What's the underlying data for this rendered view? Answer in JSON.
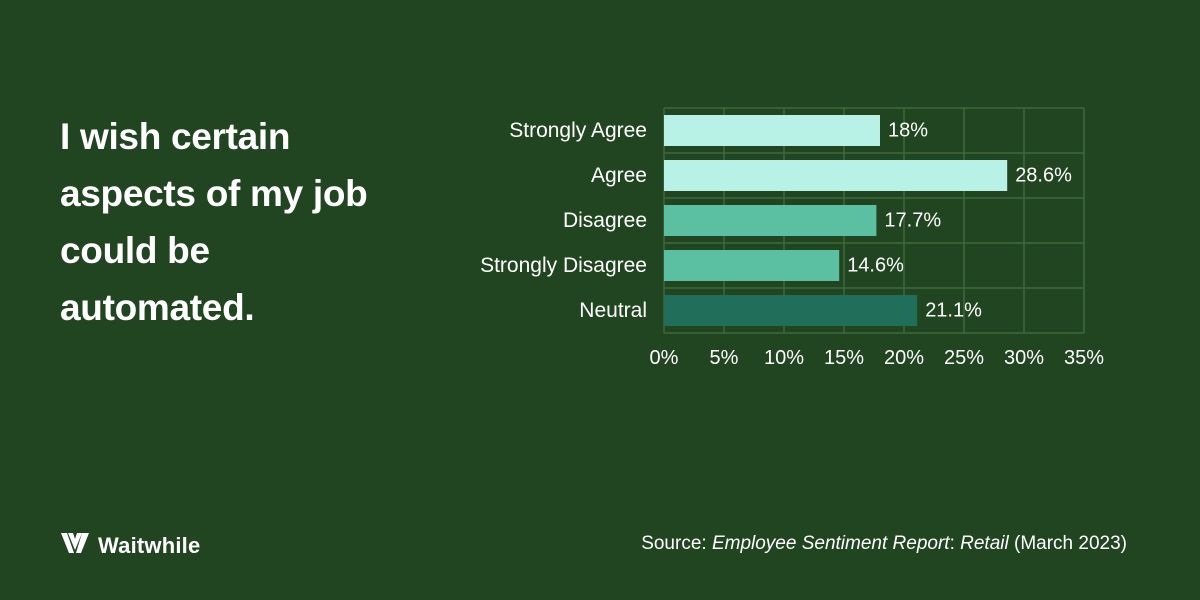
{
  "headline": "I wish certain aspects of my job could be automated.",
  "brand": {
    "name": "Waitwhile",
    "logo_icon": "waitwhile-w-logo-icon"
  },
  "source": {
    "prefix": "Source: ",
    "report_title": "Employee Sentiment Report",
    "separator": ": ",
    "report_subtitle": "Retail",
    "date": " (March 2023)"
  },
  "chart_data": {
    "type": "bar",
    "orientation": "horizontal",
    "categories": [
      "Strongly Agree",
      "Agree",
      "Disagree",
      "Strongly Disagree",
      "Neutral"
    ],
    "values": [
      18,
      28.6,
      17.7,
      14.6,
      21.1
    ],
    "data_labels": [
      "18%",
      "28.6%",
      "17.7%",
      "14.6%",
      "21.1%"
    ],
    "bar_colors": [
      "#b8f2e6",
      "#b8f2e6",
      "#5bbfa1",
      "#5bbfa1",
      "#216f5a"
    ],
    "xlim": [
      0,
      35
    ],
    "x_ticks": [
      0,
      5,
      10,
      15,
      20,
      25,
      30,
      35
    ],
    "x_tick_labels": [
      "0%",
      "5%",
      "10%",
      "15%",
      "20%",
      "25%",
      "30%",
      "35%"
    ],
    "grid": true,
    "grid_color": "#3d6a3a",
    "legend": "none"
  }
}
